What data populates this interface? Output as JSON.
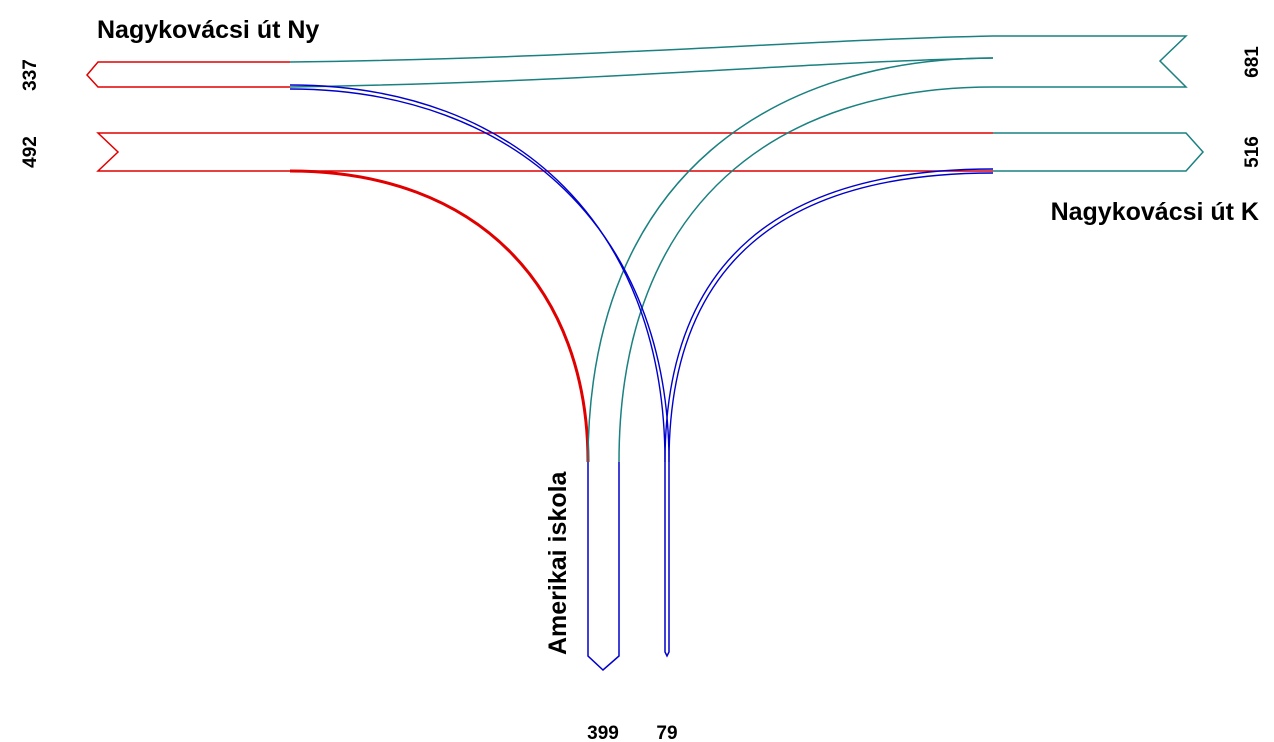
{
  "diagram": {
    "type": "traffic-flow-diagram",
    "arms": {
      "west": {
        "name": "Nagykovácsi út Ny",
        "count_out": "337",
        "count_in": "492"
      },
      "east": {
        "name": "Nagykovácsi út K",
        "count_out": "681",
        "count_in": "516"
      },
      "south": {
        "name": "Amerikai iskola",
        "count_out": "399",
        "count_in": "79"
      }
    },
    "colors": {
      "from_east": "#1a8080",
      "from_west": "#e00000",
      "from_south": "#0000cc"
    }
  }
}
